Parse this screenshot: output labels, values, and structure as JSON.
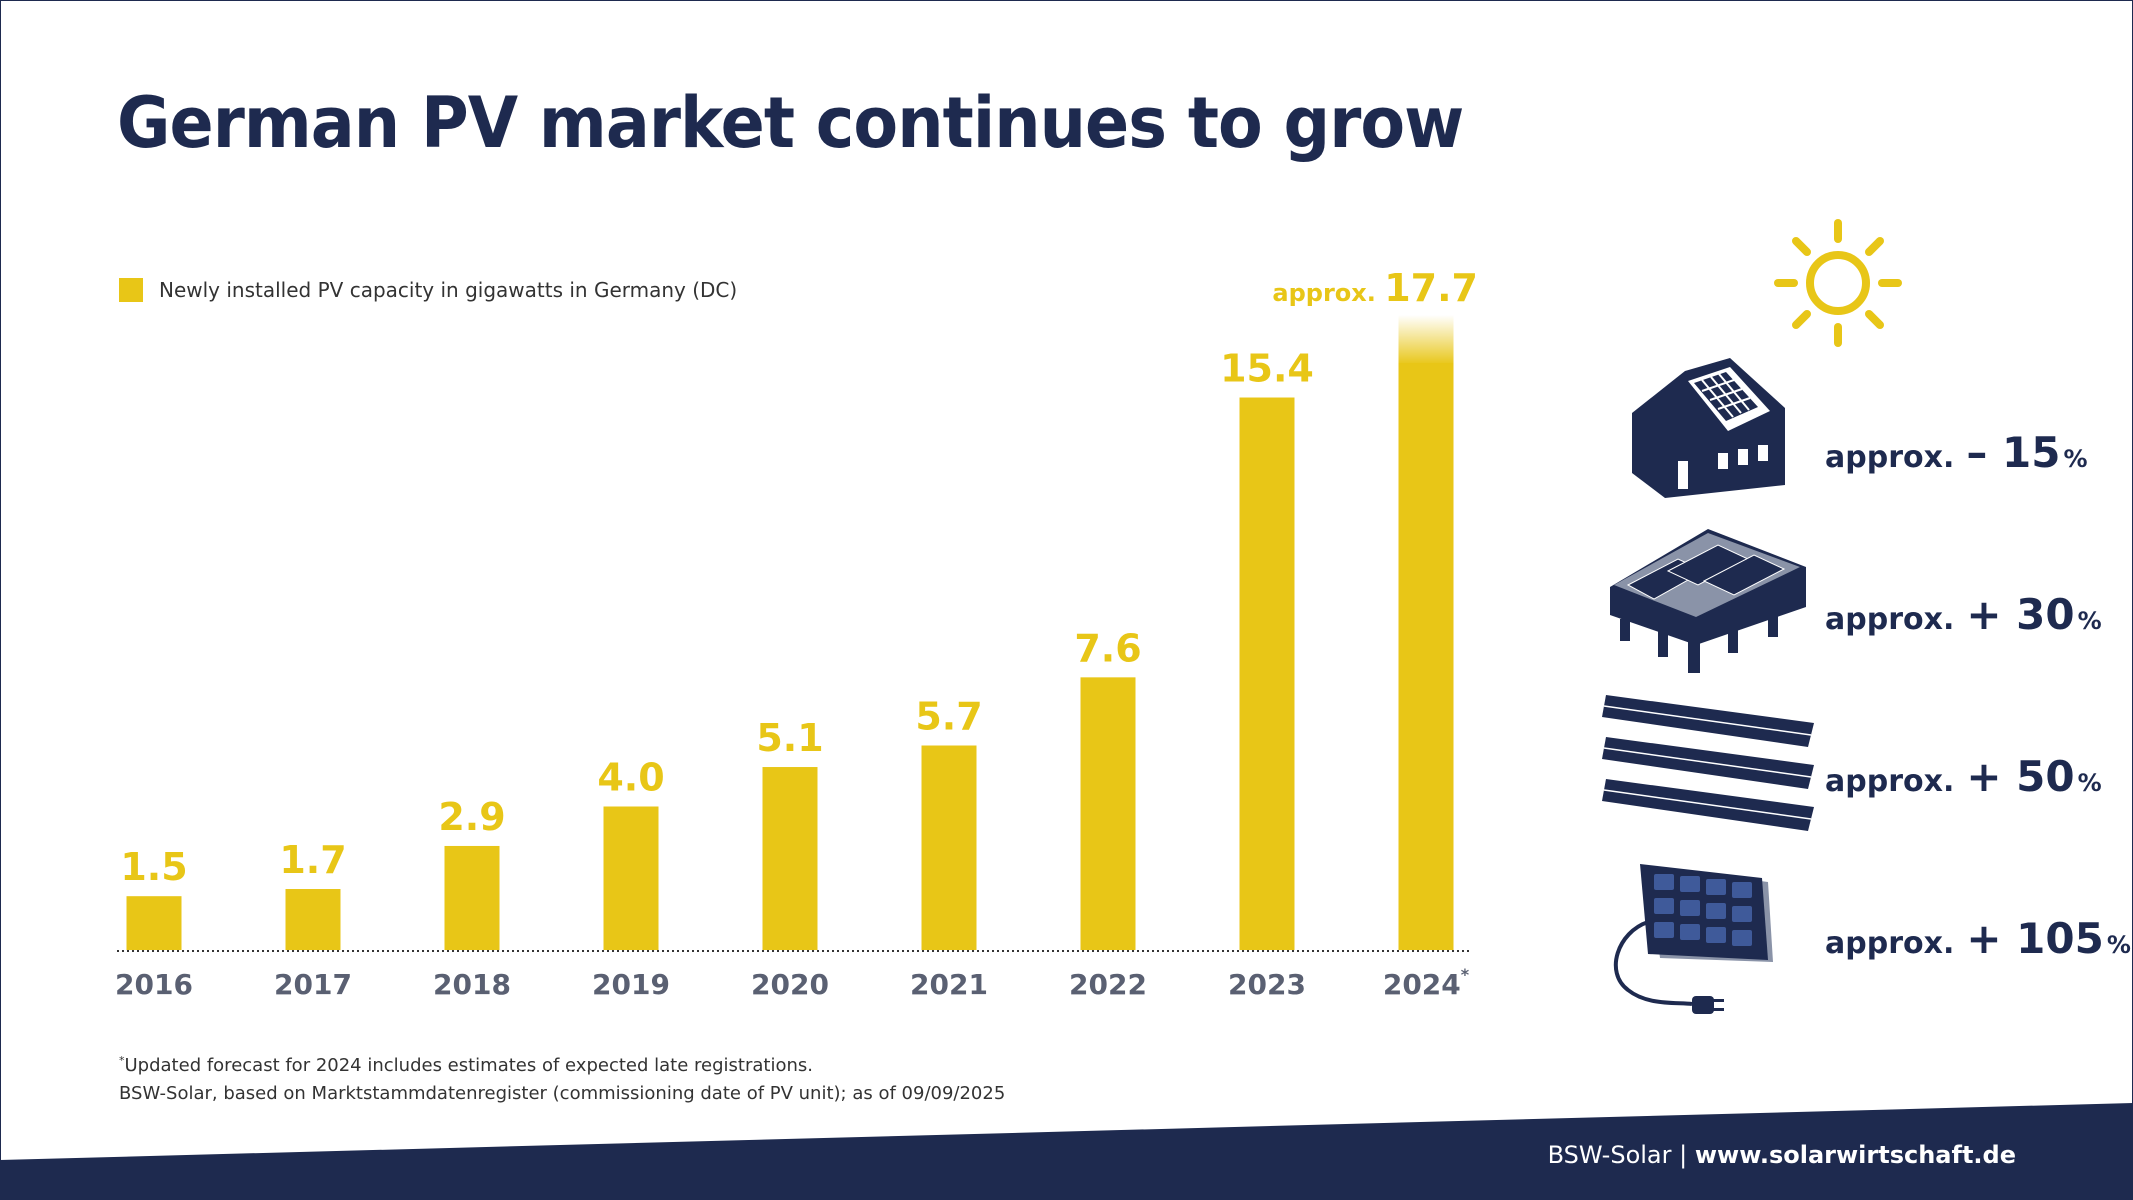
{
  "title": "German PV market continues to grow",
  "legend": {
    "label": "Newly installed PV capacity in gigawatts in Germany (DC)"
  },
  "colors": {
    "accent": "#e8c617",
    "navy": "#1e2a4f",
    "axis_label": "#5a6072"
  },
  "chart_data": {
    "type": "bar",
    "categories": [
      "2016",
      "2017",
      "2018",
      "2019",
      "2020",
      "2021",
      "2022",
      "2023",
      "2024"
    ],
    "values": [
      1.5,
      1.7,
      2.9,
      4.0,
      5.1,
      5.7,
      7.6,
      15.4,
      17.7
    ],
    "value_labels": [
      "1.5",
      "1.7",
      "2.9",
      "4.0",
      "5.1",
      "5.7",
      "7.6",
      "15.4",
      "17.7"
    ],
    "last_value_prefix": "approx.",
    "last_category_marker": "*",
    "series": [
      {
        "name": "Newly installed PV capacity in gigawatts in Germany (DC)",
        "values": [
          1.5,
          1.7,
          2.9,
          4.0,
          5.1,
          5.7,
          7.6,
          15.4,
          17.7
        ]
      }
    ],
    "ylim": [
      0,
      17.7
    ],
    "grid": false,
    "legend_position": "top-left"
  },
  "segments": [
    {
      "icon": "house-rooftop-icon",
      "prefix": "approx.",
      "value": "– 15",
      "unit": "%"
    },
    {
      "icon": "commercial-roof-icon",
      "prefix": "approx.",
      "value": "+ 30",
      "unit": "%"
    },
    {
      "icon": "ground-mounted-icon",
      "prefix": "approx.",
      "value": "+ 50",
      "unit": "%"
    },
    {
      "icon": "plug-in-solar-icon",
      "prefix": "approx.",
      "value": "+ 105",
      "unit": "%"
    }
  ],
  "decor_icons": [
    "sun-icon"
  ],
  "footnote": {
    "marker": "*",
    "line1": "Updated forecast for 2024 includes estimates of expected late registrations.",
    "line2": "BSW-Solar, based on Marktstammdatenregister (commissioning date of PV unit); as of 09/09/2025"
  },
  "footer": {
    "org": "BSW-Solar",
    "separator": "|",
    "url": "www.solarwirtschaft.de"
  }
}
